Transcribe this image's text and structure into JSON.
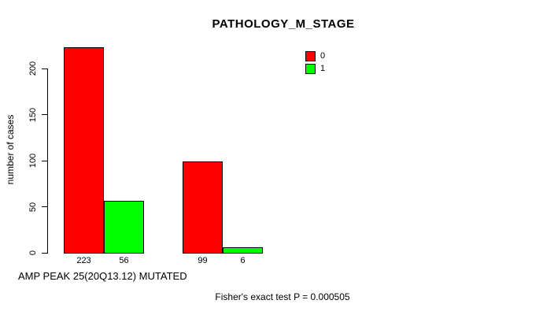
{
  "chart_data": {
    "type": "bar",
    "title": "PATHOLOGY_M_STAGE",
    "ylabel": "number of cases",
    "xlabel": "AMP PEAK 25(20Q13.12) MUTATED",
    "footnote": "Fisher's exact test P = 0.000505",
    "yticks": [
      0,
      50,
      100,
      150,
      200
    ],
    "ylim": [
      0,
      223
    ],
    "grid": false,
    "legend_position": "top-right",
    "series": [
      {
        "name": "0",
        "color": "#FF0000",
        "values": [
          223,
          99
        ]
      },
      {
        "name": "1",
        "color": "#00FF00",
        "values": [
          56,
          6
        ]
      }
    ],
    "bar_labels": [
      "223",
      "56",
      "99",
      "6"
    ],
    "legend": [
      {
        "label": "0",
        "color": "#FF0000"
      },
      {
        "label": "1",
        "color": "#00FF00"
      }
    ]
  }
}
